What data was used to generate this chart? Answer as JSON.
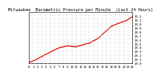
{
  "title": "Milwaukee  Barometric Pressure per Minute  (Last 24 Hours)",
  "background_color": "#ffffff",
  "plot_background": "#ffffff",
  "line_color": "#dd0000",
  "grid_color": "#999999",
  "y_min": 29.0,
  "y_max": 30.3,
  "n_points": 1440,
  "title_fontsize": 3.8,
  "tick_fontsize": 2.8,
  "y_ticks": [
    29.0,
    29.1,
    29.2,
    29.3,
    29.4,
    29.5,
    29.6,
    29.7,
    29.8,
    29.9,
    30.0,
    30.1,
    30.2
  ],
  "x_tick_labels": [
    "0",
    "1",
    "2",
    "3",
    "4",
    "5",
    "6",
    "7",
    "8",
    "9",
    "10",
    "11",
    "12",
    "13",
    "14",
    "15",
    "16",
    "17",
    "18",
    "19",
    "20",
    "21",
    "22",
    "23",
    "24"
  ],
  "marker_size": 0.5
}
